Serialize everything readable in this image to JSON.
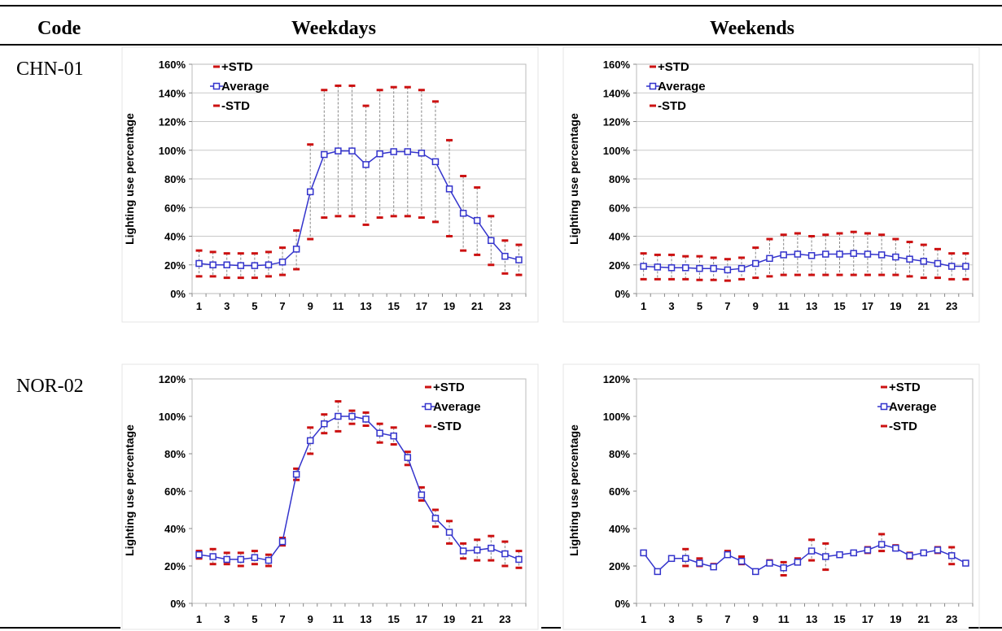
{
  "table": {
    "headers": {
      "code": "Code",
      "weekdays": "Weekdays",
      "weekends": "Weekends"
    },
    "rows": [
      {
        "code": "CHN-01"
      },
      {
        "code": "NOR-02"
      }
    ]
  },
  "chart_data": [
    {
      "id": "chn-weekdays",
      "type": "line",
      "ylabel": "Lighting use percentage",
      "ylim": [
        0,
        160
      ],
      "yticks": [
        0,
        20,
        40,
        60,
        80,
        100,
        120,
        140,
        160
      ],
      "ytick_labels": [
        "0%",
        "20%",
        "40%",
        "60%",
        "80%",
        "100%",
        "120%",
        "140%",
        "160%"
      ],
      "xtick_labels": [
        "1",
        "3",
        "5",
        "7",
        "9",
        "11",
        "13",
        "15",
        "17",
        "19",
        "21",
        "23"
      ],
      "x": [
        1,
        2,
        3,
        4,
        5,
        6,
        7,
        8,
        9,
        10,
        11,
        12,
        13,
        14,
        15,
        16,
        17,
        18,
        19,
        20,
        21,
        22,
        23,
        24
      ],
      "grid": true,
      "legend_position": "top-left",
      "series": [
        {
          "name": "+STD",
          "values": [
            30,
            29,
            28,
            28,
            28,
            29,
            32,
            44,
            104,
            142,
            145,
            145,
            131,
            142,
            144,
            144,
            142,
            134,
            107,
            82,
            74,
            54,
            37,
            34
          ]
        },
        {
          "name": "Average",
          "values": [
            21,
            20,
            20,
            19.5,
            19.5,
            20,
            22,
            31,
            71,
            97,
            99.5,
            99.5,
            90,
            97.5,
            99,
            99,
            98,
            92,
            73,
            56,
            51,
            37,
            26,
            23.5
          ]
        },
        {
          "name": "-STD",
          "values": [
            12,
            12,
            11,
            11,
            11,
            12,
            13,
            17,
            38,
            53,
            54,
            54,
            48,
            53,
            54,
            54,
            53,
            50,
            40,
            30,
            27,
            20,
            14,
            13
          ]
        }
      ],
      "colors": {
        "line": "#3333cc",
        "std": "#cc1111",
        "guide": "#888888"
      }
    },
    {
      "id": "chn-weekends",
      "type": "line",
      "ylabel": "Lighting use percentage",
      "ylim": [
        0,
        160
      ],
      "yticks": [
        0,
        20,
        40,
        60,
        80,
        100,
        120,
        140,
        160
      ],
      "ytick_labels": [
        "0%",
        "20%",
        "40%",
        "60%",
        "80%",
        "100%",
        "120%",
        "140%",
        "160%"
      ],
      "xtick_labels": [
        "1",
        "3",
        "5",
        "7",
        "9",
        "11",
        "13",
        "15",
        "17",
        "19",
        "21",
        "23"
      ],
      "x": [
        1,
        2,
        3,
        4,
        5,
        6,
        7,
        8,
        9,
        10,
        11,
        12,
        13,
        14,
        15,
        16,
        17,
        18,
        19,
        20,
        21,
        22,
        23,
        24
      ],
      "grid": true,
      "legend_position": "top-left",
      "series": [
        {
          "name": "+STD",
          "values": [
            28,
            27,
            27,
            26,
            26,
            25,
            24,
            25,
            32,
            38,
            41,
            42,
            40,
            41,
            42,
            43,
            42,
            41,
            38,
            36,
            34,
            31,
            28,
            28
          ]
        },
        {
          "name": "Average",
          "values": [
            19,
            18.5,
            18,
            18,
            17.5,
            17.5,
            16.5,
            17.5,
            21,
            24.5,
            27,
            27.5,
            26.5,
            27.5,
            27.5,
            28,
            27.5,
            27,
            25.5,
            24,
            22.5,
            21,
            19,
            19
          ]
        },
        {
          "name": "-STD",
          "values": [
            10,
            10,
            10,
            10,
            9.5,
            9.5,
            9,
            10,
            11,
            12,
            13,
            13,
            13,
            13,
            13,
            13,
            13,
            13,
            13,
            12,
            11,
            11,
            10,
            10
          ]
        }
      ],
      "colors": {
        "line": "#3333cc",
        "std": "#cc1111",
        "guide": "#888888"
      }
    },
    {
      "id": "nor-weekdays",
      "type": "line",
      "ylabel": "Lighting use percentage",
      "ylim": [
        0,
        120
      ],
      "yticks": [
        0,
        20,
        40,
        60,
        80,
        100,
        120
      ],
      "ytick_labels": [
        "0%",
        "20%",
        "40%",
        "60%",
        "80%",
        "100%",
        "120%"
      ],
      "xtick_labels": [
        "1",
        "3",
        "5",
        "7",
        "9",
        "11",
        "13",
        "15",
        "17",
        "19",
        "21",
        "23"
      ],
      "x": [
        1,
        2,
        3,
        4,
        5,
        6,
        7,
        8,
        9,
        10,
        11,
        12,
        13,
        14,
        15,
        16,
        17,
        18,
        19,
        20,
        21,
        22,
        23,
        24
      ],
      "grid": false,
      "legend_position": "top-right",
      "series": [
        {
          "name": "+STD",
          "values": [
            28,
            29,
            27,
            27,
            28,
            26,
            35,
            72,
            94,
            101,
            108,
            103,
            102,
            96,
            94,
            81,
            62,
            50,
            44,
            32,
            34,
            36,
            33,
            28
          ]
        },
        {
          "name": "Average",
          "values": [
            26,
            25,
            23.5,
            23.5,
            24.5,
            23,
            33,
            69,
            87,
            96,
            100,
            100,
            98.5,
            91,
            89.5,
            78,
            58,
            45.5,
            38,
            28,
            28.5,
            29.5,
            26.5,
            23.5
          ]
        },
        {
          "name": "-STD",
          "values": [
            24,
            21,
            21,
            20,
            21,
            20,
            31,
            66,
            80,
            91,
            92,
            96,
            95,
            86,
            85,
            74,
            55,
            41,
            32,
            24,
            23,
            23,
            20,
            19
          ]
        }
      ],
      "colors": {
        "line": "#3333cc",
        "std": "#cc1111",
        "guide": "#888888"
      }
    },
    {
      "id": "nor-weekends",
      "type": "line",
      "ylabel": "Lighting use percentage",
      "ylim": [
        0,
        120
      ],
      "yticks": [
        0,
        20,
        40,
        60,
        80,
        100,
        120
      ],
      "ytick_labels": [
        "0%",
        "20%",
        "40%",
        "60%",
        "80%",
        "100%",
        "120%"
      ],
      "xtick_labels": [
        "1",
        "3",
        "5",
        "7",
        "9",
        "11",
        "13",
        "15",
        "17",
        "19",
        "21",
        "23"
      ],
      "x": [
        1,
        2,
        3,
        4,
        5,
        6,
        7,
        8,
        9,
        10,
        11,
        12,
        13,
        14,
        15,
        16,
        17,
        18,
        19,
        20,
        21,
        22,
        23,
        24
      ],
      "grid": false,
      "legend_position": "top-right",
      "series": [
        {
          "name": "+STD",
          "values": [
            28,
            18,
            25,
            29,
            24,
            21,
            28,
            25,
            18,
            23,
            22,
            24,
            34,
            32,
            27,
            28,
            30,
            37,
            31,
            27,
            28,
            30,
            30,
            22
          ]
        },
        {
          "name": "Average",
          "values": [
            27,
            17,
            24,
            24,
            21.5,
            19.5,
            26,
            22.5,
            17,
            21.5,
            19,
            22,
            28,
            25,
            26,
            27,
            28.5,
            31.5,
            29.5,
            25.5,
            27,
            28.5,
            25.5,
            21.5
          ]
        },
        {
          "name": "-STD",
          "values": [
            26,
            16,
            23,
            20,
            20,
            19,
            25,
            21,
            16,
            21,
            15,
            21,
            23,
            18,
            25,
            26,
            27,
            28,
            29,
            24,
            26,
            27,
            21,
            21
          ]
        }
      ],
      "colors": {
        "line": "#3333cc",
        "std": "#cc1111",
        "guide": "#888888"
      }
    }
  ]
}
